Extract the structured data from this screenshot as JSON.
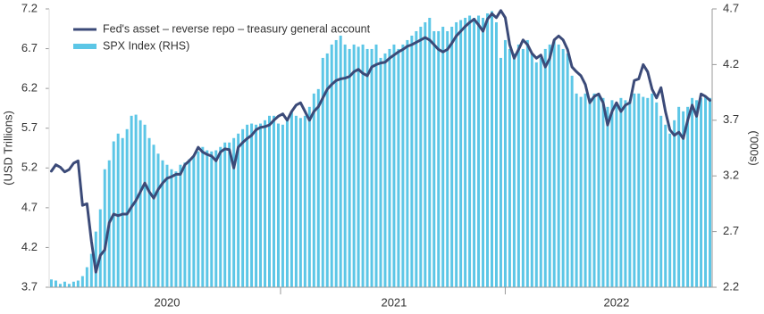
{
  "chart_data": {
    "type": "combo",
    "legend": "top-left",
    "y_label": "(USD Trillions)",
    "y2_label": "('000s)",
    "ylim": [
      3.7,
      7.2
    ],
    "yticks": [
      3.7,
      4.2,
      4.7,
      5.2,
      5.7,
      6.2,
      6.7,
      7.2
    ],
    "y2lim": [
      2.2,
      4.7
    ],
    "y2ticks": [
      2.2,
      2.7,
      3.2,
      3.7,
      4.2,
      4.7
    ],
    "categories": [
      null,
      null,
      null,
      null,
      null,
      null,
      null,
      null,
      null,
      null,
      null,
      null,
      null,
      null,
      null,
      null,
      null,
      null,
      null,
      null,
      null,
      null,
      null,
      null,
      null,
      null,
      "2020",
      null,
      null,
      null,
      null,
      null,
      null,
      null,
      null,
      null,
      null,
      null,
      null,
      null,
      null,
      null,
      null,
      null,
      null,
      null,
      null,
      null,
      null,
      null,
      null,
      null,
      null,
      null,
      null,
      null,
      null,
      null,
      null,
      null,
      null,
      null,
      null,
      null,
      null,
      null,
      null,
      null,
      null,
      null,
      null,
      null,
      null,
      null,
      null,
      null,
      null,
      "2021",
      null,
      null,
      null,
      null,
      null,
      null,
      null,
      null,
      null,
      null,
      null,
      null,
      null,
      null,
      null,
      null,
      null,
      null,
      null,
      null,
      null,
      null,
      null,
      null,
      null,
      null,
      null,
      null,
      null,
      null,
      null,
      null,
      null,
      null,
      null,
      null,
      null,
      null,
      null,
      null,
      null,
      null,
      null,
      null,
      null,
      null,
      null,
      null,
      null,
      "2022",
      null,
      null,
      null,
      null,
      null,
      null,
      null,
      null,
      null,
      null,
      null,
      null,
      null,
      null,
      null,
      null,
      null,
      null,
      null,
      null,
      null
    ],
    "series": [
      {
        "name": "Fed's asset – reverse repo – treasury general account",
        "type": "line",
        "axis": "y",
        "color": "#3b4a78",
        "values": [
          5.16,
          5.24,
          5.21,
          5.15,
          5.18,
          5.26,
          5.29,
          4.73,
          4.75,
          4.28,
          3.89,
          4.1,
          4.17,
          4.51,
          4.62,
          4.6,
          4.62,
          4.62,
          4.71,
          4.79,
          4.9,
          5.01,
          4.9,
          4.82,
          4.93,
          5.01,
          5.07,
          5.09,
          5.12,
          5.12,
          5.24,
          5.29,
          5.35,
          5.46,
          5.4,
          5.37,
          5.35,
          5.29,
          5.4,
          5.44,
          5.43,
          5.2,
          5.46,
          5.52,
          5.57,
          5.61,
          5.68,
          5.71,
          5.72,
          5.74,
          5.8,
          5.85,
          5.88,
          5.8,
          5.91,
          5.99,
          6.02,
          5.91,
          5.8,
          5.91,
          5.97,
          6.08,
          6.19,
          6.25,
          6.3,
          6.32,
          6.33,
          6.35,
          6.41,
          6.44,
          6.39,
          6.36,
          6.47,
          6.5,
          6.52,
          6.53,
          6.58,
          6.62,
          6.66,
          6.69,
          6.73,
          6.75,
          6.78,
          6.81,
          6.84,
          6.81,
          6.75,
          6.69,
          6.66,
          6.69,
          6.77,
          6.86,
          6.92,
          6.98,
          7.03,
          7.07,
          7.0,
          6.92,
          7.07,
          7.14,
          7.09,
          7.18,
          7.09,
          6.75,
          6.58,
          6.69,
          6.81,
          6.75,
          6.64,
          6.58,
          6.62,
          6.47,
          6.58,
          6.81,
          6.86,
          6.81,
          6.69,
          6.47,
          6.41,
          6.36,
          6.25,
          6.02,
          6.1,
          6.13,
          6.02,
          5.74,
          5.91,
          6.02,
          5.91,
          5.99,
          6.02,
          6.3,
          6.32,
          6.5,
          6.41,
          6.19,
          6.08,
          6.21,
          5.91,
          5.68,
          5.61,
          5.65,
          5.57,
          5.8,
          5.99,
          5.85,
          6.13,
          6.1,
          6.05
        ]
      },
      {
        "name": "SPX Index (RHS)",
        "type": "bar",
        "axis": "y2",
        "color": "#5cc6e6",
        "values": [
          2.27,
          2.26,
          2.23,
          2.25,
          2.23,
          2.25,
          2.26,
          2.3,
          2.38,
          2.5,
          2.7,
          2.9,
          3.26,
          3.34,
          3.51,
          3.58,
          3.54,
          3.62,
          3.74,
          3.75,
          3.7,
          3.66,
          3.54,
          3.48,
          3.4,
          3.34,
          3.3,
          3.26,
          3.24,
          3.3,
          3.32,
          3.35,
          3.38,
          3.42,
          3.46,
          3.43,
          3.42,
          3.43,
          3.46,
          3.5,
          3.5,
          3.54,
          3.58,
          3.62,
          3.66,
          3.67,
          3.66,
          3.67,
          3.7,
          3.74,
          3.74,
          3.67,
          3.66,
          3.7,
          3.78,
          3.74,
          3.72,
          3.74,
          3.82,
          3.94,
          3.98,
          4.26,
          4.3,
          4.38,
          4.42,
          4.46,
          4.38,
          4.34,
          4.38,
          4.36,
          4.38,
          4.34,
          4.34,
          4.38,
          4.26,
          4.3,
          4.34,
          4.38,
          4.34,
          4.38,
          4.42,
          4.46,
          4.5,
          4.54,
          4.58,
          4.62,
          4.5,
          4.5,
          4.54,
          4.5,
          4.54,
          4.58,
          4.6,
          4.62,
          4.64,
          4.62,
          4.64,
          4.62,
          4.66,
          4.68,
          4.58,
          4.26,
          4.42,
          4.34,
          4.3,
          4.38,
          4.34,
          4.42,
          4.3,
          4.22,
          4.26,
          4.34,
          4.38,
          4.42,
          4.38,
          4.34,
          4.3,
          4.1,
          3.94,
          3.91,
          3.94,
          3.9,
          3.94,
          3.94,
          3.9,
          3.82,
          3.88,
          3.86,
          3.9,
          3.88,
          3.86,
          3.94,
          3.94,
          3.91,
          3.9,
          3.94,
          3.86,
          3.74,
          3.66,
          3.58,
          3.7,
          3.82,
          3.78,
          3.82,
          3.9,
          3.88,
          3.9,
          3.91,
          3.9
        ]
      }
    ]
  }
}
